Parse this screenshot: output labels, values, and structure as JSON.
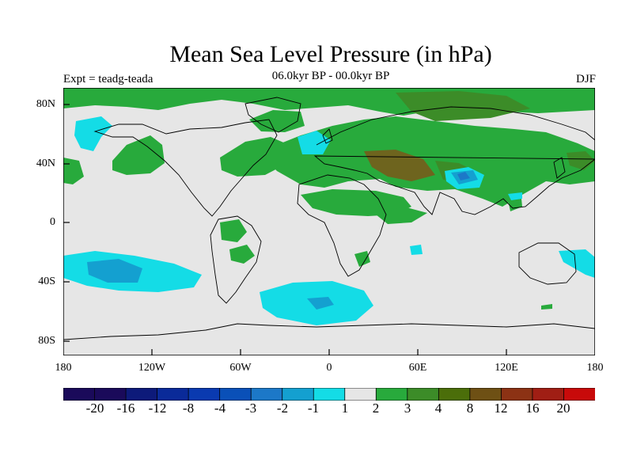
{
  "title": "Mean Sea Level Pressure (in hPa)",
  "expt_label": "Expt = teadg-teada",
  "subtitle": "06.0kyr BP - 00.0kyr BP",
  "season": "DJF",
  "lat_labels": [
    "80N",
    "40N",
    "0",
    "40S",
    "80S"
  ],
  "lon_labels": [
    "180",
    "120W",
    "60W",
    "0",
    "60E",
    "120E",
    "180"
  ],
  "colorbar": {
    "labels": [
      "-20",
      "-16",
      "-12",
      "-8",
      "-4",
      "-3",
      "-2",
      "-1",
      "1",
      "2",
      "3",
      "4",
      "8",
      "12",
      "16",
      "20"
    ],
    "colors": [
      "#1a0a5a",
      "#0d1a7a",
      "#0a2a99",
      "#0a3ab0",
      "#0a50b8",
      "#1c78c8",
      "#14a0d0",
      "#14dce6",
      "#e6e6e6",
      "#28aa3c",
      "#3c8c28",
      "#4b6e0a",
      "#6e5014",
      "#8c3214",
      "#a01e14",
      "#c80a0a"
    ]
  },
  "colors": {
    "background": "#e6e6e6",
    "green": "#28aa3c",
    "darkgreen": "#3c8c28",
    "olive": "#6e641e",
    "cyan": "#14dce6",
    "blue": "#14a0d0",
    "deepblue": "#1c78c8"
  }
}
